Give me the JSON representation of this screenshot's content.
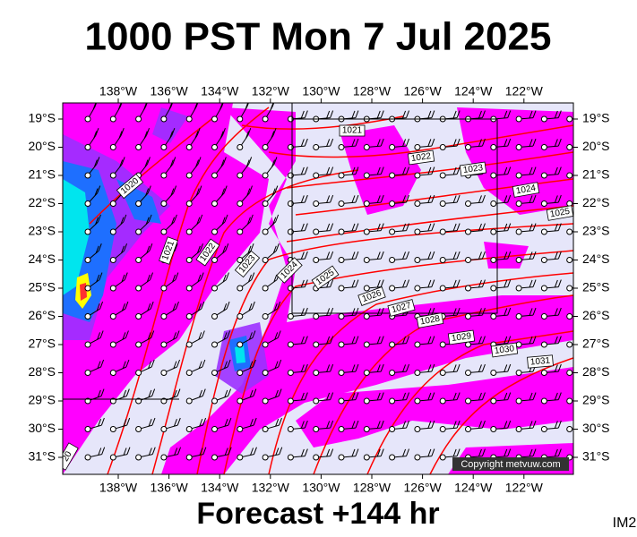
{
  "header": {
    "title": "1000 PST Mon 7 Jul 2025"
  },
  "map": {
    "lon_labels": [
      "138°W",
      "136°W",
      "134°W",
      "132°W",
      "130°W",
      "128°W",
      "126°W",
      "124°W",
      "122°W"
    ],
    "lat_labels": [
      "19°S",
      "20°S",
      "21°S",
      "22°S",
      "23°S",
      "24°S",
      "25°S",
      "26°S",
      "27°S",
      "28°S",
      "29°S",
      "30°S",
      "31°S"
    ],
    "isobar_labels": [
      "1021",
      "1022",
      "1023",
      "1024",
      "1025",
      "1020",
      "1021",
      "1022",
      "1023",
      "1024",
      "1025",
      "1026",
      "1027",
      "1028",
      "1029",
      "1030",
      "1031",
      "20"
    ],
    "credit": "Copyright metvuw.com"
  },
  "footer": {
    "forecast": "Forecast +144 hr",
    "id": "IM2"
  }
}
